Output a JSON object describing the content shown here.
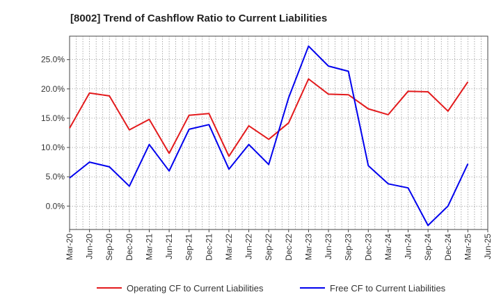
{
  "chart_data": {
    "type": "line",
    "title": "[8002]  Trend of Cashflow Ratio to Current Liabilities",
    "xlabel": "",
    "ylabel": "",
    "x": [
      "Mar-20",
      "Jun-20",
      "Sep-20",
      "Dec-20",
      "Mar-21",
      "Jun-21",
      "Sep-21",
      "Dec-21",
      "Mar-22",
      "Jun-22",
      "Sep-22",
      "Dec-22",
      "Mar-23",
      "Jun-23",
      "Sep-23",
      "Dec-23",
      "Mar-24",
      "Jun-24",
      "Sep-24",
      "Dec-24",
      "Mar-25",
      "Jun-25"
    ],
    "ylim": [
      -4,
      29
    ],
    "yticks": [
      0,
      5,
      10,
      15,
      20,
      25
    ],
    "ytick_labels": [
      "0.0%",
      "5.0%",
      "10.0%",
      "15.0%",
      "20.0%",
      "25.0%"
    ],
    "grid": true,
    "legend_position": "bottom",
    "series": [
      {
        "name": "Operating CF to Current Liabilities",
        "color": "#e31a1c",
        "values": [
          13.3,
          19.3,
          18.8,
          13.0,
          14.8,
          9.0,
          15.5,
          15.8,
          8.5,
          13.7,
          11.4,
          14.2,
          21.7,
          19.1,
          19.0,
          16.6,
          15.6,
          19.6,
          19.5,
          16.2,
          21.2,
          null
        ]
      },
      {
        "name": "Free CF to Current Liabilities",
        "color": "#0000ee",
        "values": [
          4.8,
          7.5,
          6.7,
          3.4,
          10.5,
          6.0,
          13.1,
          13.9,
          6.3,
          10.5,
          7.1,
          18.5,
          27.3,
          23.9,
          23.0,
          6.9,
          3.8,
          3.1,
          -3.3,
          0.0,
          7.2,
          null
        ]
      }
    ]
  }
}
